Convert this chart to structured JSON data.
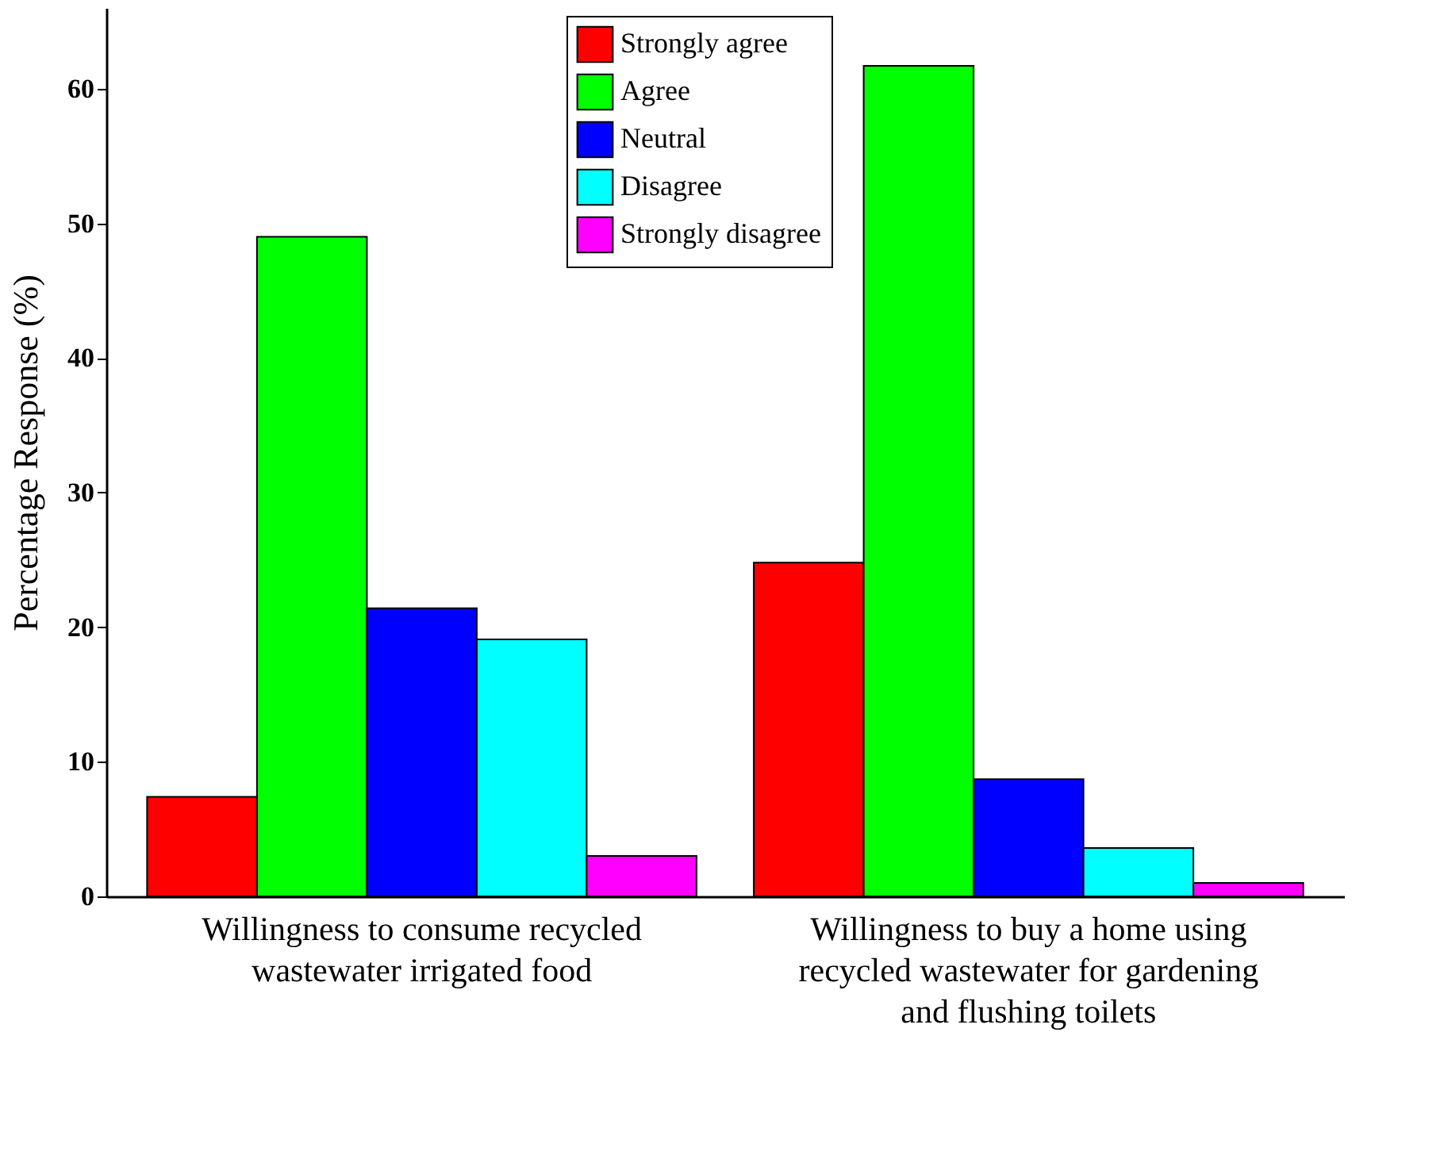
{
  "chart_data": {
    "type": "bar",
    "ylabel": "Percentage Response (%)",
    "categories": [
      "Willingness to consume recycled wastewater irrigated food",
      "Willingness to buy a home using recycled wastewater for gardening and flushing toilets"
    ],
    "series": [
      {
        "name": "Strongly agree",
        "color": "#ff0000",
        "values": [
          7.4,
          24.8
        ]
      },
      {
        "name": "Agree",
        "color": "#00ff00",
        "values": [
          49.0,
          61.7
        ]
      },
      {
        "name": "Neutral",
        "color": "#0000ff",
        "values": [
          21.4,
          8.7
        ]
      },
      {
        "name": "Disagree",
        "color": "#00ffff",
        "values": [
          19.1,
          3.6
        ]
      },
      {
        "name": "Strongly disagree",
        "color": "#ff00ff",
        "values": [
          3.0,
          1.0
        ]
      }
    ],
    "ylim": [
      0,
      66
    ],
    "yticks": [
      0,
      10,
      20,
      30,
      40,
      50,
      60
    ],
    "grid": false,
    "legend": "top"
  }
}
